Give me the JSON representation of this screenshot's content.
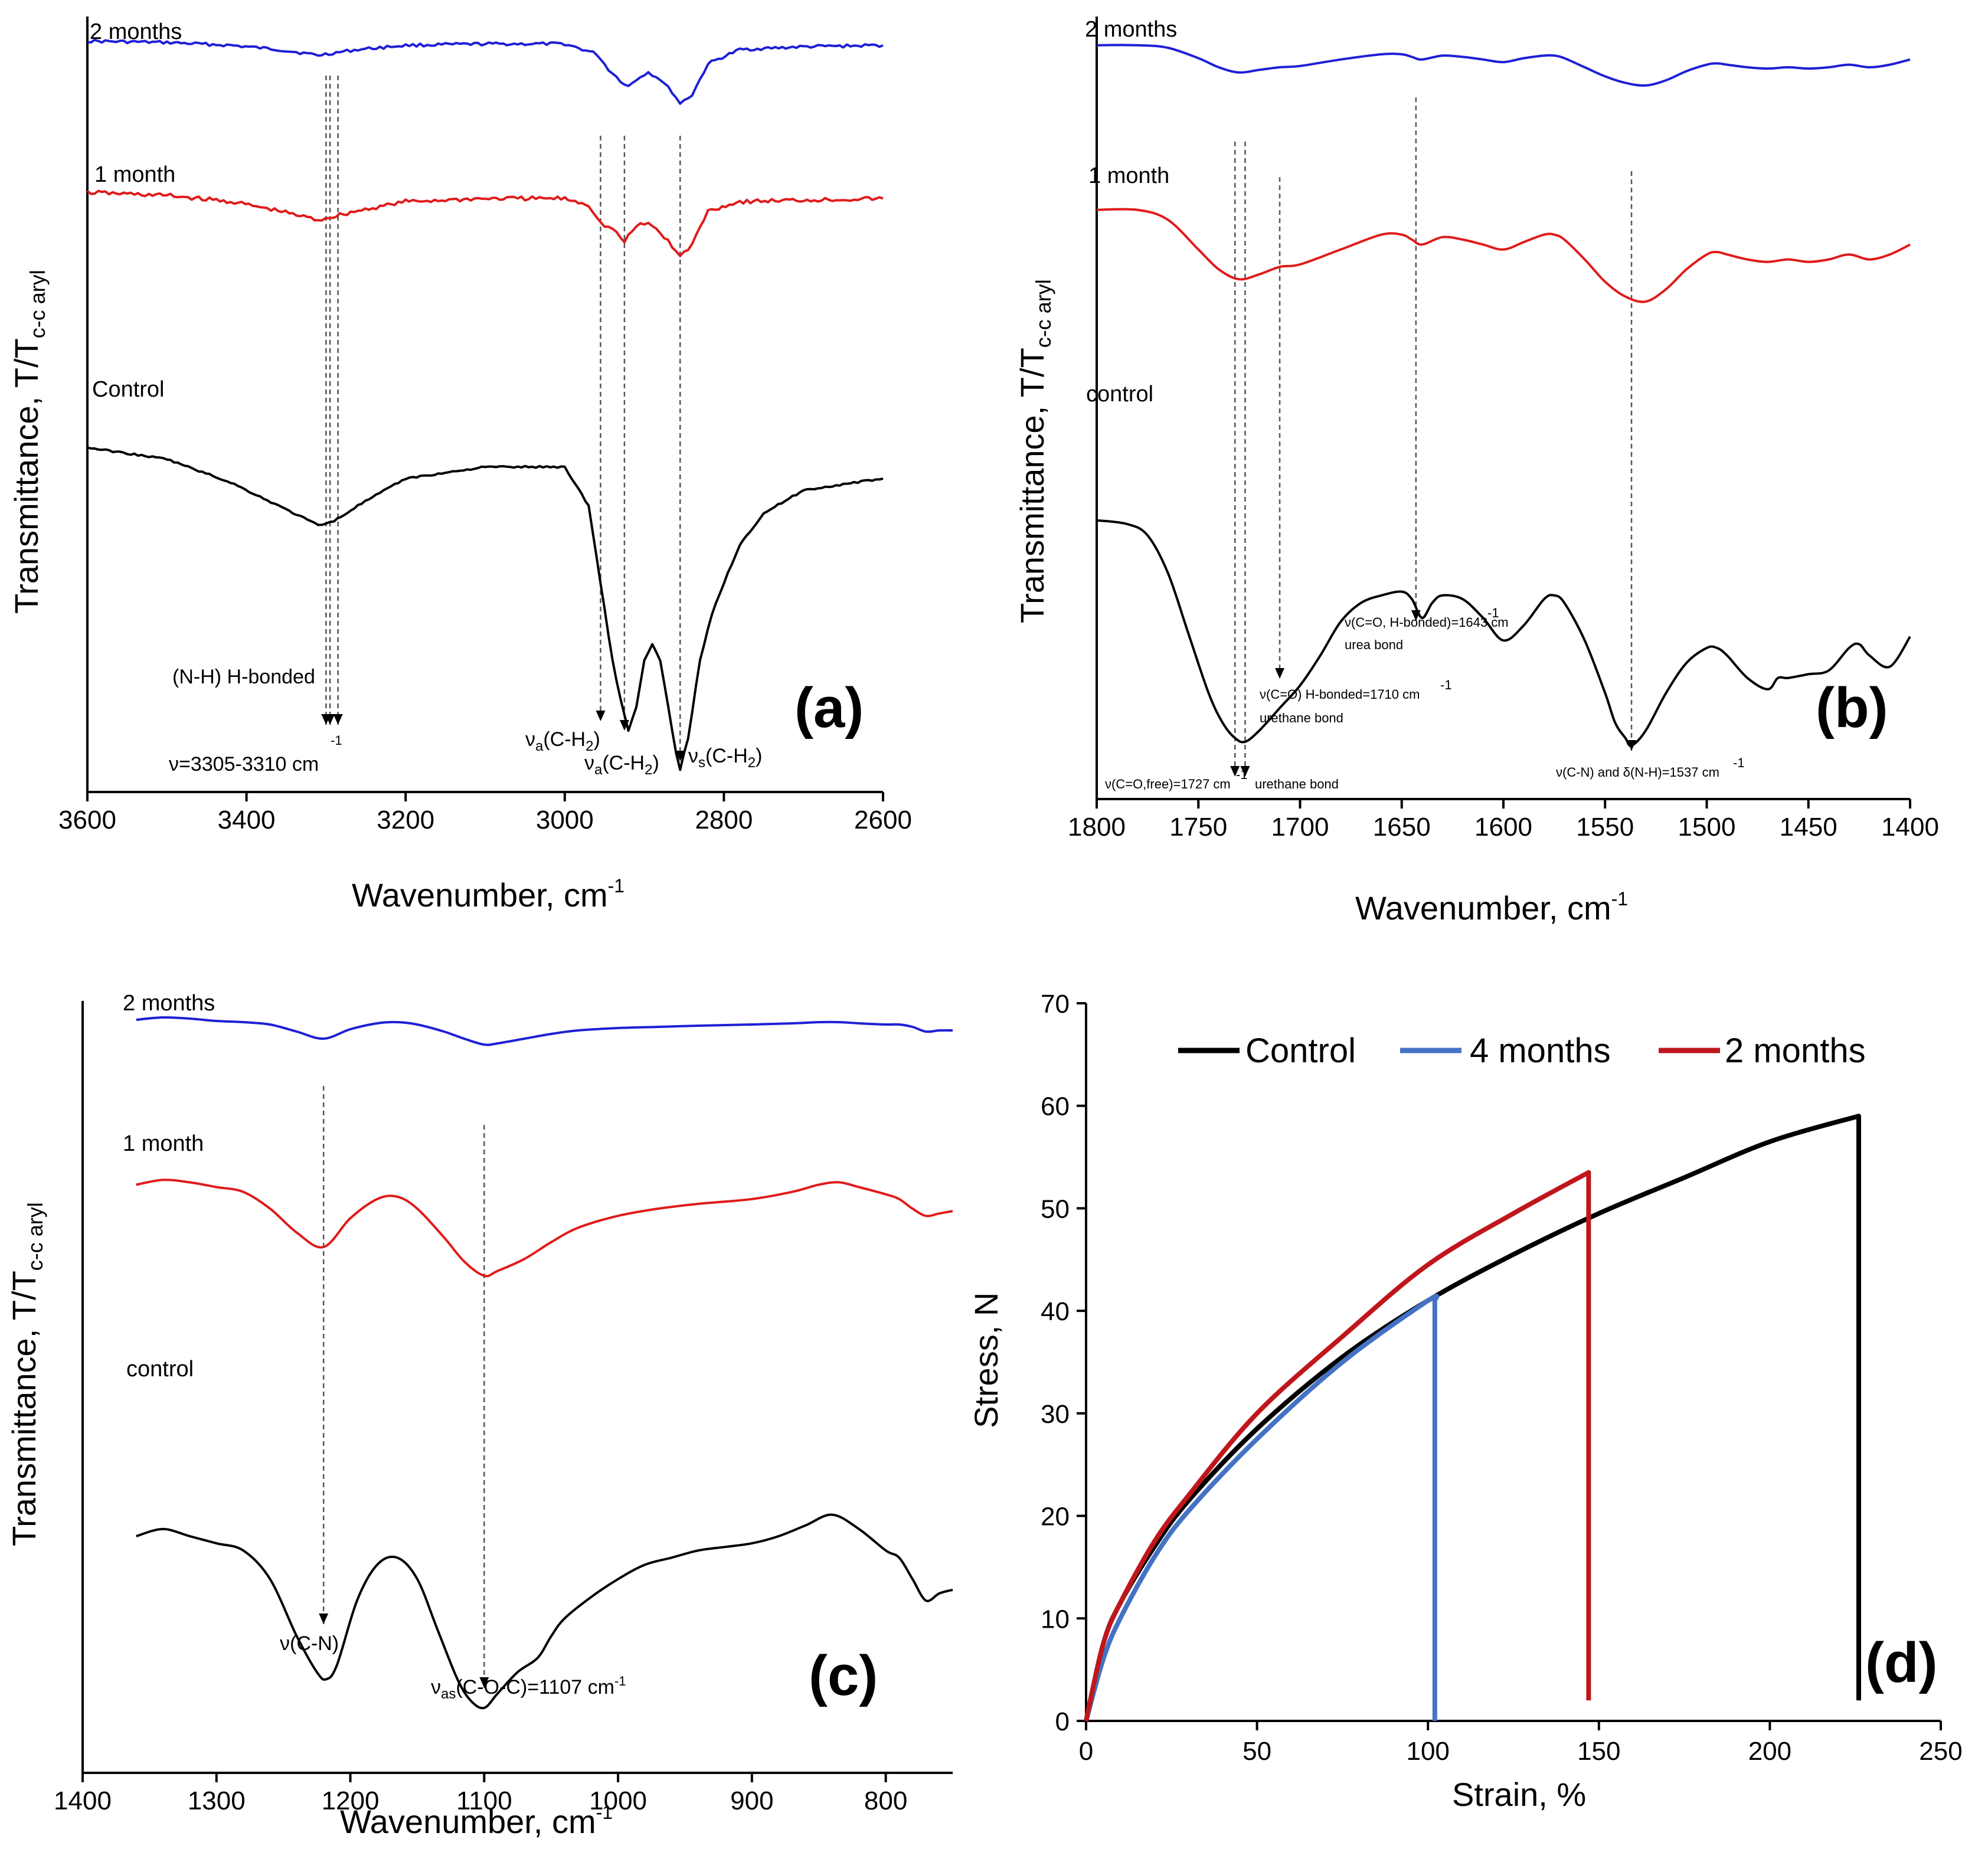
{
  "chart_data": [
    {
      "type": "line",
      "panel_label": "(a)",
      "xlabel": "Wavenumber, cm",
      "xlabel_sup": "-1",
      "ylabel": "Transmittance, T/T",
      "ylabel_sub": "c-c aryl",
      "xlim": [
        3600,
        2600
      ],
      "xticks": [
        "3600",
        "3400",
        "3200",
        "3000",
        "2800",
        "2600"
      ],
      "series": [
        {
          "name": "2 months",
          "color": "#1f1fd6",
          "x": [
            3600,
            3500,
            3420,
            3360,
            3310,
            3260,
            3200,
            3100,
            3000,
            2960,
            2945,
            2930,
            2920,
            2905,
            2895,
            2880,
            2865,
            2855,
            2840,
            2820,
            2780,
            2700,
            2600
          ],
          "y": [
            0.96,
            0.95,
            0.93,
            0.9,
            0.86,
            0.9,
            0.93,
            0.94,
            0.94,
            0.87,
            0.76,
            0.68,
            0.64,
            0.71,
            0.74,
            0.69,
            0.6,
            0.52,
            0.58,
            0.8,
            0.9,
            0.92,
            0.93
          ]
        },
        {
          "name": "1 month",
          "color": "#e01b1b",
          "x": [
            3600,
            3500,
            3420,
            3360,
            3310,
            3260,
            3200,
            3100,
            3000,
            2970,
            2955,
            2940,
            2925,
            2910,
            2895,
            2880,
            2865,
            2855,
            2840,
            2820,
            2780,
            2700,
            2600
          ],
          "y": [
            0.9,
            0.88,
            0.84,
            0.78,
            0.72,
            0.78,
            0.84,
            0.86,
            0.86,
            0.82,
            0.7,
            0.66,
            0.58,
            0.68,
            0.7,
            0.64,
            0.55,
            0.48,
            0.56,
            0.78,
            0.84,
            0.85,
            0.86
          ]
        },
        {
          "name": "Control",
          "color": "#000000",
          "x": [
            3600,
            3500,
            3420,
            3360,
            3310,
            3290,
            3260,
            3200,
            3100,
            3000,
            2970,
            2955,
            2940,
            2930,
            2920,
            2910,
            2900,
            2890,
            2880,
            2870,
            2860,
            2855,
            2845,
            2830,
            2815,
            2800,
            2780,
            2750,
            2700,
            2600
          ],
          "y": [
            0.85,
            0.82,
            0.76,
            0.7,
            0.65,
            0.66,
            0.7,
            0.77,
            0.8,
            0.8,
            0.7,
            0.5,
            0.3,
            0.2,
            0.12,
            0.18,
            0.3,
            0.34,
            0.3,
            0.18,
            0.06,
            0.02,
            0.1,
            0.3,
            0.42,
            0.5,
            0.6,
            0.68,
            0.74,
            0.77
          ]
        }
      ],
      "annotations": [
        "(N-H) H-bonded",
        "ν=3305-3310 cm",
        "ν",
        "(C-H",
        ")"
      ]
    },
    {
      "type": "line",
      "panel_label": "(b)",
      "xlabel": "Wavenumber, cm",
      "xlabel_sup": "-1",
      "ylabel": "Transmittance, T/T",
      "ylabel_sub": "c-c aryl",
      "xlim": [
        1800,
        1400
      ],
      "xticks": [
        "1800",
        "1750",
        "1700",
        "1650",
        "1600",
        "1550",
        "1500",
        "1450",
        "1400"
      ],
      "series": [
        {
          "name": "2 months",
          "color": "#1f1fd6",
          "x": [
            1800,
            1780,
            1765,
            1750,
            1740,
            1730,
            1720,
            1710,
            1700,
            1680,
            1660,
            1650,
            1645,
            1640,
            1630,
            1620,
            1610,
            1600,
            1590,
            1580,
            1575,
            1570,
            1560,
            1550,
            1540,
            1530,
            1520,
            1510,
            1500,
            1495,
            1490,
            1480,
            1470,
            1460,
            1450,
            1440,
            1430,
            1420,
            1410,
            1400
          ],
          "y": [
            0.97,
            0.97,
            0.95,
            0.87,
            0.8,
            0.76,
            0.78,
            0.8,
            0.81,
            0.86,
            0.9,
            0.9,
            0.88,
            0.86,
            0.89,
            0.88,
            0.86,
            0.84,
            0.87,
            0.89,
            0.89,
            0.87,
            0.8,
            0.73,
            0.68,
            0.66,
            0.7,
            0.77,
            0.82,
            0.83,
            0.82,
            0.8,
            0.79,
            0.8,
            0.79,
            0.8,
            0.82,
            0.8,
            0.82,
            0.86
          ]
        },
        {
          "name": "1 month",
          "color": "#e01b1b",
          "x": [
            1800,
            1780,
            1765,
            1750,
            1740,
            1730,
            1720,
            1710,
            1700,
            1680,
            1660,
            1650,
            1645,
            1640,
            1630,
            1620,
            1610,
            1600,
            1590,
            1580,
            1575,
            1570,
            1560,
            1550,
            1540,
            1530,
            1520,
            1510,
            1500,
            1495,
            1490,
            1480,
            1470,
            1460,
            1450,
            1440,
            1430,
            1420,
            1410,
            1400
          ],
          "y": [
            0.82,
            0.82,
            0.78,
            0.66,
            0.58,
            0.54,
            0.56,
            0.59,
            0.6,
            0.66,
            0.72,
            0.72,
            0.7,
            0.68,
            0.71,
            0.7,
            0.68,
            0.66,
            0.69,
            0.72,
            0.72,
            0.7,
            0.62,
            0.53,
            0.47,
            0.45,
            0.5,
            0.58,
            0.64,
            0.65,
            0.64,
            0.62,
            0.61,
            0.62,
            0.61,
            0.62,
            0.64,
            0.62,
            0.64,
            0.68
          ]
        },
        {
          "name": "control",
          "color": "#000000",
          "x": [
            1800,
            1785,
            1775,
            1765,
            1755,
            1745,
            1738,
            1732,
            1727,
            1720,
            1710,
            1700,
            1690,
            1680,
            1670,
            1660,
            1650,
            1645,
            1640,
            1635,
            1630,
            1620,
            1610,
            1600,
            1590,
            1580,
            1575,
            1570,
            1560,
            1550,
            1545,
            1540,
            1537,
            1530,
            1520,
            1510,
            1500,
            1495,
            1490,
            1480,
            1470,
            1465,
            1460,
            1450,
            1440,
            1430,
            1425,
            1420,
            1410,
            1400
          ],
          "y": [
            0.62,
            0.61,
            0.58,
            0.48,
            0.32,
            0.16,
            0.08,
            0.04,
            0.03,
            0.06,
            0.12,
            0.18,
            0.26,
            0.35,
            0.4,
            0.42,
            0.43,
            0.41,
            0.36,
            0.4,
            0.42,
            0.41,
            0.36,
            0.3,
            0.34,
            0.41,
            0.42,
            0.4,
            0.3,
            0.16,
            0.08,
            0.04,
            0.02,
            0.06,
            0.16,
            0.24,
            0.28,
            0.28,
            0.26,
            0.2,
            0.17,
            0.2,
            0.2,
            0.21,
            0.22,
            0.28,
            0.29,
            0.26,
            0.23,
            0.31
          ]
        }
      ],
      "annotations": [
        "ν(C=O, H-bonded)=1643 cm",
        "urea bond",
        "ν(C=O) H-bonded=1710 cm",
        "urethane bond",
        "ν(C=O,free)=1727 cm",
        "urethane bond",
        "ν(C-N) and δ(N-H)=1537 cm"
      ]
    },
    {
      "type": "line",
      "panel_label": "(c)",
      "xlabel": "Wavenumber, cm",
      "xlabel_sup": "-1",
      "ylabel": "Transmittance, T/T",
      "ylabel_sub": "c-c aryl",
      "xlim": [
        1400,
        750
      ],
      "xticks": [
        "1400",
        "1300",
        "1200",
        "1100",
        "1000",
        "900",
        "800"
      ],
      "series": [
        {
          "name": "2 months",
          "color": "#1f1fd6",
          "x": [
            1360,
            1340,
            1320,
            1300,
            1280,
            1260,
            1240,
            1220,
            1200,
            1180,
            1165,
            1150,
            1130,
            1115,
            1100,
            1090,
            1070,
            1050,
            1030,
            1000,
            970,
            940,
            900,
            870,
            850,
            835,
            820,
            800,
            790,
            780,
            770,
            760,
            750
          ],
          "y": [
            0.96,
            0.98,
            0.97,
            0.95,
            0.94,
            0.92,
            0.86,
            0.8,
            0.88,
            0.93,
            0.94,
            0.92,
            0.86,
            0.8,
            0.75,
            0.76,
            0.8,
            0.84,
            0.87,
            0.89,
            0.9,
            0.91,
            0.92,
            0.93,
            0.94,
            0.94,
            0.93,
            0.92,
            0.92,
            0.9,
            0.86,
            0.87,
            0.87
          ]
        },
        {
          "name": "1 month",
          "color": "#e01b1b",
          "x": [
            1360,
            1340,
            1320,
            1300,
            1280,
            1260,
            1240,
            1220,
            1200,
            1180,
            1165,
            1150,
            1130,
            1115,
            1100,
            1090,
            1070,
            1050,
            1030,
            1000,
            970,
            940,
            900,
            870,
            850,
            835,
            820,
            800,
            790,
            780,
            770,
            760,
            750
          ],
          "y": [
            0.76,
            0.78,
            0.77,
            0.75,
            0.73,
            0.66,
            0.56,
            0.5,
            0.62,
            0.7,
            0.71,
            0.66,
            0.54,
            0.44,
            0.38,
            0.4,
            0.45,
            0.52,
            0.58,
            0.63,
            0.66,
            0.68,
            0.7,
            0.73,
            0.76,
            0.77,
            0.75,
            0.72,
            0.7,
            0.66,
            0.63,
            0.64,
            0.65
          ]
        },
        {
          "name": "control",
          "color": "#000000",
          "x": [
            1360,
            1340,
            1320,
            1300,
            1280,
            1260,
            1240,
            1225,
            1218,
            1210,
            1195,
            1180,
            1165,
            1150,
            1135,
            1120,
            1110,
            1100,
            1090,
            1075,
            1060,
            1050,
            1040,
            1020,
            1000,
            980,
            960,
            940,
            920,
            900,
            880,
            860,
            840,
            820,
            800,
            790,
            780,
            770,
            760,
            750
          ],
          "y": [
            0.5,
            0.52,
            0.5,
            0.48,
            0.46,
            0.38,
            0.22,
            0.12,
            0.1,
            0.14,
            0.32,
            0.42,
            0.44,
            0.38,
            0.24,
            0.1,
            0.04,
            0.02,
            0.06,
            0.12,
            0.16,
            0.22,
            0.27,
            0.33,
            0.38,
            0.42,
            0.44,
            0.46,
            0.47,
            0.48,
            0.5,
            0.53,
            0.56,
            0.52,
            0.46,
            0.44,
            0.38,
            0.32,
            0.34,
            0.35
          ]
        }
      ],
      "annotations": [
        "ν(C-N)",
        "ν",
        "as",
        "(C-O-C)=1107 cm"
      ]
    },
    {
      "type": "line",
      "panel_label": "(d)",
      "xlabel": "Strain, %",
      "ylabel": "Stress, N",
      "xlim": [
        0,
        250
      ],
      "ylim": [
        0,
        70
      ],
      "xticks": [
        "0",
        "50",
        "100",
        "150",
        "200",
        "250"
      ],
      "yticks": [
        "0",
        "10",
        "20",
        "30",
        "40",
        "50",
        "60",
        "70"
      ],
      "legend_position": "top",
      "series": [
        {
          "name": "Control",
          "color": "#000000",
          "x": [
            0,
            5,
            10,
            20,
            30,
            50,
            75,
            100,
            125,
            150,
            175,
            200,
            226,
            226
          ],
          "y": [
            0,
            7.5,
            11.5,
            17,
            21.5,
            28.5,
            35.5,
            41,
            45.5,
            49.5,
            53,
            56.5,
            59,
            2
          ]
        },
        {
          "name": "4 months",
          "color": "#4472c4",
          "x": [
            0,
            5,
            10,
            20,
            30,
            50,
            75,
            100,
            102,
            102
          ],
          "y": [
            0,
            6,
            10,
            16,
            20.5,
            27.5,
            35,
            41,
            41,
            0
          ]
        },
        {
          "name": "2 months",
          "color": "#c0161b",
          "x": [
            0,
            5,
            10,
            20,
            30,
            50,
            75,
            100,
            125,
            147,
            147
          ],
          "y": [
            0,
            7.5,
            11.5,
            17.5,
            22,
            30,
            37.5,
            44.5,
            49.5,
            53.5,
            2
          ]
        }
      ]
    }
  ]
}
